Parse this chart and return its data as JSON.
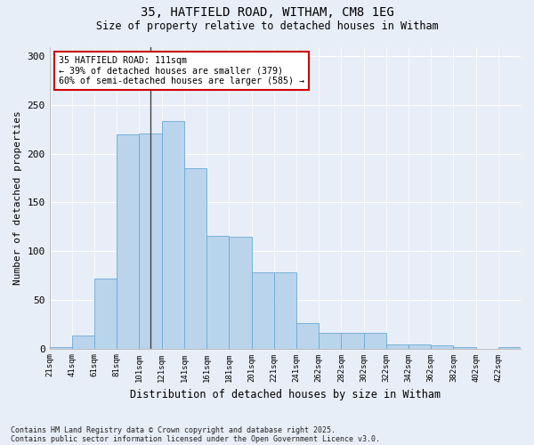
{
  "title_line1": "35, HATFIELD ROAD, WITHAM, CM8 1EG",
  "title_line2": "Size of property relative to detached houses in Witham",
  "xlabel": "Distribution of detached houses by size in Witham",
  "ylabel": "Number of detached properties",
  "categories": [
    "21sqm",
    "41sqm",
    "61sqm",
    "81sqm",
    "101sqm",
    "121sqm",
    "141sqm",
    "161sqm",
    "181sqm",
    "201sqm",
    "221sqm",
    "241sqm",
    "262sqm",
    "282sqm",
    "302sqm",
    "322sqm",
    "342sqm",
    "362sqm",
    "382sqm",
    "402sqm",
    "422sqm"
  ],
  "bar_values": [
    1,
    13,
    72,
    220,
    221,
    234,
    185,
    116,
    115,
    78,
    78,
    26,
    16,
    16,
    16,
    4,
    4,
    3,
    1,
    0,
    1
  ],
  "bar_color": "#bad4ec",
  "bar_edge_color": "#6aaad4",
  "annotation_text": "35 HATFIELD ROAD: 111sqm\n← 39% of detached houses are smaller (379)\n60% of semi-detached houses are larger (585) →",
  "annotation_box_color": "#ffffff",
  "annotation_box_edge": "#cc0000",
  "vline_x": 5,
  "ylim": [
    0,
    310
  ],
  "yticks": [
    0,
    50,
    100,
    150,
    200,
    250,
    300
  ],
  "footnote_line1": "Contains HM Land Registry data © Crown copyright and database right 2025.",
  "footnote_line2": "Contains public sector information licensed under the Open Government Licence v3.0.",
  "bg_color": "#e8eef8",
  "plot_bg_color": "#e8eef8",
  "title_fontsize": 10,
  "subtitle_fontsize": 9
}
